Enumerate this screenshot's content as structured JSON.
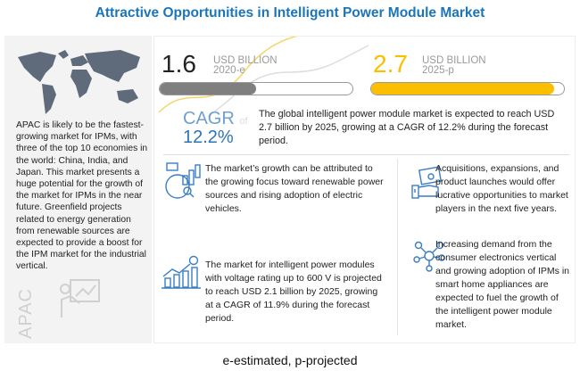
{
  "title": "Attractive Opportunities in Intelligent Power Module Market",
  "left": {
    "text": "APAC is likely to be the fastest-growing market for IPMs, with three of the top 10 economies in the world: China, India, and Japan. This market presents a huge potential for the growth of the market for IPMs in the near future. Greenfield projects related to energy generation from renewable sources are expected to provide a boost for the IPM market for the industrial vertical.",
    "region": "APAC"
  },
  "stats": {
    "v2020": {
      "value": "1.6",
      "unit": "USD BILLION",
      "year": "2020-e",
      "fill_percent": 50,
      "color": "#7f7f7f"
    },
    "v2025": {
      "value": "2.7",
      "unit": "USD BILLION",
      "year": "2025-p",
      "fill_percent": 95,
      "color": "#fbbf00"
    }
  },
  "cagr": {
    "label": "CAGR",
    "of": "of",
    "value": "12.2%",
    "text": "The global intelligent power module market is expected to reach USD 2.7 billion by 2025, growing at a CAGR of 12.2% during the forecast period."
  },
  "items": [
    {
      "text": "The market’s growth can be attributed to the growing focus toward renewable power sources and rising adoption of electric vehicles."
    },
    {
      "text": "Acquisitions, expansions, and product launches would offer lucrative opportunities to market players in the next five years."
    },
    {
      "text": "The market for intelligent power modules with voltage rating up to 600 V is projected to reach USD 2.1 billion by 2025, growing at a CAGR of 11.9% during the forecast period."
    },
    {
      "text": "Increasing demand from the consumer electronics vertical and growing adoption of IPMs in smart home appliances are expected to fuel the growth of the intelligent power module market."
    }
  ],
  "footer": "e-estimated, p-projected"
}
